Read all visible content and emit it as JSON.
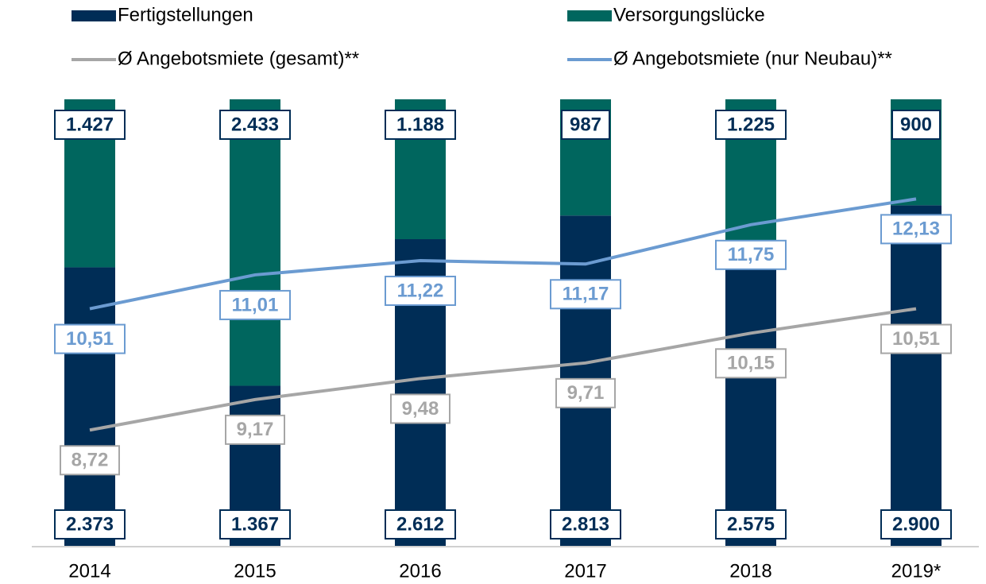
{
  "chart_data": {
    "type": "bar",
    "stacked": true,
    "categories": [
      "2014",
      "2015",
      "2016",
      "2017",
      "2018",
      "2019*"
    ],
    "ylim": [
      0,
      3800
    ],
    "y2lim": [
      7,
      13.6
    ],
    "series": [
      {
        "name": "Fertigstellungen",
        "type": "bar",
        "color": "#002d56",
        "values": [
          2373,
          1367,
          2612,
          2813,
          2575,
          2900
        ],
        "value_labels": [
          "2.373",
          "1.367",
          "2.612",
          "2.813",
          "2.575",
          "2.900"
        ]
      },
      {
        "name": "Versorgungslücke",
        "type": "bar",
        "color": "#00665e",
        "values": [
          1427,
          2433,
          1188,
          987,
          1225,
          900
        ],
        "value_labels": [
          "1.427",
          "2.433",
          "1.188",
          "987",
          "1.225",
          "900"
        ]
      },
      {
        "name": "Ø Angebotsmiete (gesamt)**",
        "type": "line",
        "axis": "y2",
        "color": "#a6a6a6",
        "values": [
          8.72,
          9.17,
          9.48,
          9.71,
          10.15,
          10.51
        ],
        "value_labels": [
          "8,72",
          "9,17",
          "9,48",
          "9,71",
          "10,15",
          "10,51"
        ]
      },
      {
        "name": "Ø Angebotsmiete (nur Neubau)**",
        "type": "line",
        "axis": "y2",
        "color": "#6b9bd1",
        "values": [
          10.51,
          11.01,
          11.22,
          11.17,
          11.75,
          12.13
        ],
        "value_labels": [
          "10,51",
          "11,01",
          "11,22",
          "11,17",
          "11,75",
          "12,13"
        ]
      }
    ]
  }
}
